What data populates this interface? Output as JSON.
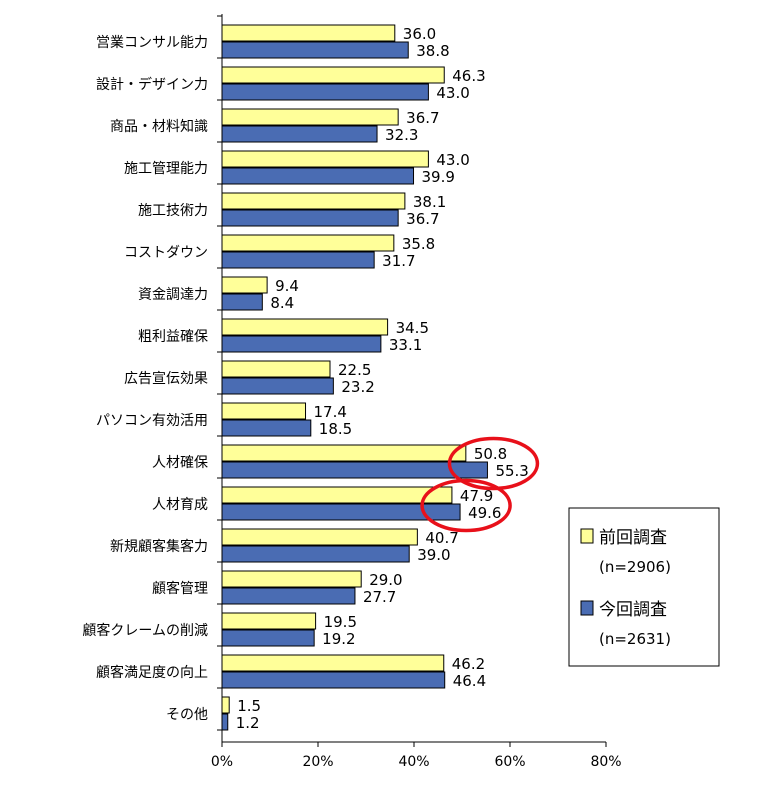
{
  "chart_data": {
    "type": "bar",
    "orientation": "horizontal",
    "categories": [
      "営業コンサル能力",
      "設計・デザイン力",
      "商品・材料知識",
      "施工管理能力",
      "施工技術力",
      "コストダウン",
      "資金調達力",
      "粗利益確保",
      "広告宣伝効果",
      "パソコン有効活用",
      "人材確保",
      "人材育成",
      "新規顧客集客力",
      "顧客管理",
      "顧客クレームの削減",
      "顧客満足度の向上",
      "その他"
    ],
    "series": [
      {
        "name": "前回調査",
        "n_label": "(n=2906)",
        "color": "#ffff99",
        "values": [
          36.0,
          46.3,
          36.7,
          43.0,
          38.1,
          35.8,
          9.4,
          34.5,
          22.5,
          17.4,
          50.8,
          47.9,
          40.7,
          29.0,
          19.5,
          46.2,
          1.5
        ],
        "labels": [
          "36.0",
          "46.3",
          "36.7",
          "43.0",
          "38.1",
          "35.8",
          "9.4",
          "34.5",
          "22.5",
          "17.4",
          "50.8",
          "47.9",
          "40.7",
          "29.0",
          "19.5",
          "46.2",
          "1.5"
        ]
      },
      {
        "name": "今回調査",
        "n_label": "(n=2631)",
        "color": "#4a6cb3",
        "values": [
          38.8,
          43.0,
          32.3,
          39.9,
          36.7,
          31.7,
          8.4,
          33.1,
          23.2,
          18.5,
          55.3,
          49.6,
          39.0,
          27.7,
          19.2,
          46.4,
          1.2
        ],
        "labels": [
          "38.8",
          "43.0",
          "32.3",
          "39.9",
          "36.7",
          "31.7",
          "8.4",
          "33.1",
          "23.2",
          "18.5",
          "55.3",
          "49.6",
          "39.0",
          "27.7",
          "19.2",
          "46.4",
          "1.2"
        ]
      }
    ],
    "xlim": [
      0,
      80
    ],
    "xticks": [
      "0%",
      "20%",
      "40%",
      "60%",
      "80%"
    ],
    "xtick_values": [
      0,
      20,
      40,
      60,
      80
    ],
    "grid": false,
    "legend_position": "bottom-right",
    "highlighted_categories": [
      "人材確保",
      "人材育成"
    ],
    "highlight_color": "#e8101a"
  }
}
